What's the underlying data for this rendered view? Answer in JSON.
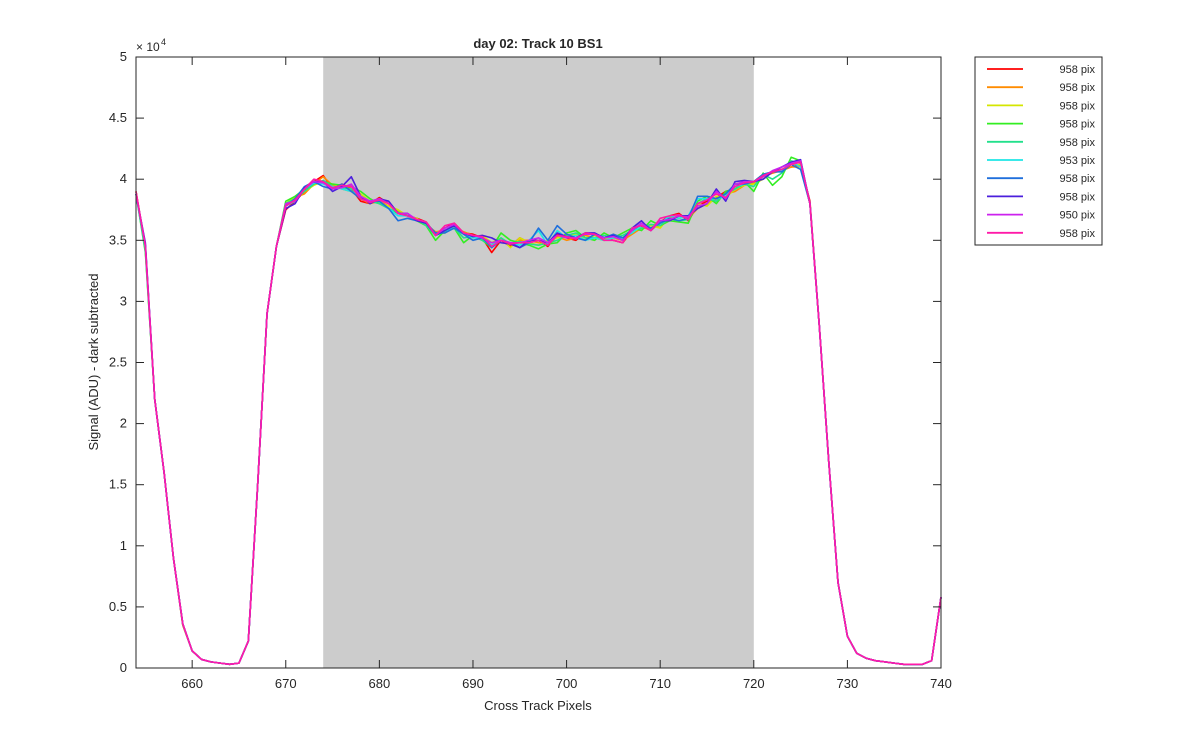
{
  "chart_data": {
    "type": "line",
    "title": "day 02: Track 10  BS1",
    "xlabel": "Cross Track Pixels",
    "ylabel": "Signal (ADU) - dark subtracted",
    "y_exponent_label": "× 10",
    "y_exponent_power": "4",
    "xlim": [
      654,
      740
    ],
    "ylim": [
      0,
      5
    ],
    "x_ticks": [
      660,
      670,
      680,
      690,
      700,
      710,
      720,
      730,
      740
    ],
    "y_ticks": [
      0,
      0.5,
      1,
      1.5,
      2,
      2.5,
      3,
      3.5,
      4,
      4.5,
      5
    ],
    "y_tick_labels": [
      "0",
      "0.5",
      "1",
      "1.5",
      "2",
      "2.5",
      "3",
      "3.5",
      "4",
      "4.5",
      "5"
    ],
    "shaded_region": {
      "x_start": 674,
      "x_end": 720,
      "color": "#cccccc"
    },
    "grid": false,
    "legend_position": "outside-top-right",
    "x": [
      654,
      655,
      656,
      657,
      658,
      659,
      660,
      661,
      662,
      663,
      664,
      665,
      666,
      667,
      668,
      669,
      670,
      671,
      672,
      673,
      674,
      675,
      676,
      677,
      678,
      679,
      680,
      681,
      682,
      683,
      684,
      685,
      686,
      687,
      688,
      689,
      690,
      691,
      692,
      693,
      694,
      695,
      696,
      697,
      698,
      699,
      700,
      701,
      702,
      703,
      704,
      705,
      706,
      707,
      708,
      709,
      710,
      711,
      712,
      713,
      714,
      715,
      716,
      717,
      718,
      719,
      720,
      721,
      722,
      723,
      724,
      725,
      726,
      727,
      728,
      729,
      730,
      731,
      732,
      733,
      734,
      735,
      736,
      737,
      738,
      739,
      740
    ],
    "series": [
      {
        "name": "958 pix",
        "color": "#ff0000",
        "values": [
          3.9,
          3.45,
          2.2,
          1.6,
          0.9,
          0.35,
          0.14,
          0.07,
          0.05,
          0.04,
          0.03,
          0.04,
          0.22,
          1.5,
          2.9,
          3.45,
          3.75,
          3.82,
          3.9,
          3.98,
          4.03,
          3.92,
          3.96,
          3.92,
          3.82,
          3.8,
          3.85,
          3.8,
          3.72,
          3.7,
          3.68,
          3.65,
          3.55,
          3.6,
          3.64,
          3.56,
          3.55,
          3.52,
          3.4,
          3.5,
          3.45,
          3.52,
          3.48,
          3.5,
          3.45,
          3.55,
          3.52,
          3.5,
          3.56,
          3.55,
          3.52,
          3.5,
          3.48,
          3.58,
          3.62,
          3.58,
          3.65,
          3.7,
          3.72,
          3.66,
          3.78,
          3.82,
          3.85,
          3.9,
          3.92,
          3.96,
          3.98,
          4.04,
          4.05,
          4.08,
          4.1,
          4.12,
          3.82,
          2.8,
          1.7,
          0.7,
          0.26,
          0.12,
          0.08,
          0.06,
          0.05,
          0.04,
          0.03,
          0.03,
          0.03,
          0.06,
          0.58
        ]
      },
      {
        "name": "958 pix",
        "color": "#ff8c00",
        "values": [
          3.9,
          3.42,
          2.2,
          1.6,
          0.9,
          0.36,
          0.14,
          0.07,
          0.05,
          0.04,
          0.03,
          0.04,
          0.22,
          1.5,
          2.9,
          3.45,
          3.78,
          3.85,
          3.88,
          3.96,
          4.02,
          3.95,
          3.92,
          3.9,
          3.84,
          3.8,
          3.82,
          3.78,
          3.74,
          3.7,
          3.66,
          3.63,
          3.57,
          3.58,
          3.6,
          3.57,
          3.54,
          3.5,
          3.46,
          3.5,
          3.47,
          3.5,
          3.5,
          3.48,
          3.47,
          3.53,
          3.5,
          3.52,
          3.54,
          3.52,
          3.5,
          3.52,
          3.5,
          3.55,
          3.6,
          3.6,
          3.62,
          3.68,
          3.7,
          3.68,
          3.76,
          3.8,
          3.84,
          3.88,
          3.9,
          3.95,
          3.97,
          4.02,
          4.05,
          4.07,
          4.1,
          4.1,
          3.8,
          2.8,
          1.7,
          0.7,
          0.26,
          0.12,
          0.08,
          0.06,
          0.05,
          0.04,
          0.03,
          0.03,
          0.03,
          0.06,
          0.58
        ]
      },
      {
        "name": "958 pix",
        "color": "#d4e600",
        "values": [
          3.88,
          3.45,
          2.2,
          1.6,
          0.9,
          0.35,
          0.14,
          0.07,
          0.05,
          0.04,
          0.03,
          0.04,
          0.22,
          1.5,
          2.9,
          3.45,
          3.8,
          3.86,
          3.9,
          3.95,
          3.98,
          3.96,
          3.94,
          3.92,
          3.88,
          3.82,
          3.8,
          3.78,
          3.75,
          3.7,
          3.68,
          3.62,
          3.55,
          3.56,
          3.62,
          3.55,
          3.52,
          3.54,
          3.48,
          3.52,
          3.44,
          3.52,
          3.48,
          3.46,
          3.5,
          3.52,
          3.54,
          3.55,
          3.5,
          3.54,
          3.5,
          3.55,
          3.52,
          3.57,
          3.6,
          3.62,
          3.6,
          3.7,
          3.68,
          3.7,
          3.8,
          3.78,
          3.86,
          3.85,
          3.92,
          3.95,
          3.96,
          4.0,
          4.06,
          4.08,
          4.12,
          4.12,
          3.8,
          2.8,
          1.7,
          0.7,
          0.26,
          0.12,
          0.08,
          0.06,
          0.05,
          0.04,
          0.03,
          0.03,
          0.03,
          0.06,
          0.58
        ]
      },
      {
        "name": "958 pix",
        "color": "#33ee22",
        "values": [
          3.88,
          3.4,
          2.2,
          1.6,
          0.9,
          0.36,
          0.14,
          0.07,
          0.05,
          0.04,
          0.03,
          0.04,
          0.22,
          1.5,
          2.9,
          3.45,
          3.82,
          3.86,
          3.92,
          3.98,
          3.98,
          3.96,
          3.95,
          3.94,
          3.9,
          3.84,
          3.8,
          3.76,
          3.72,
          3.72,
          3.66,
          3.62,
          3.5,
          3.58,
          3.6,
          3.48,
          3.54,
          3.5,
          3.44,
          3.56,
          3.5,
          3.48,
          3.46,
          3.43,
          3.47,
          3.48,
          3.56,
          3.58,
          3.52,
          3.5,
          3.56,
          3.52,
          3.56,
          3.6,
          3.58,
          3.66,
          3.62,
          3.66,
          3.65,
          3.64,
          3.82,
          3.86,
          3.8,
          3.9,
          3.92,
          3.98,
          3.9,
          4.05,
          3.95,
          4.02,
          4.18,
          4.15,
          3.8,
          2.8,
          1.7,
          0.7,
          0.26,
          0.12,
          0.08,
          0.06,
          0.05,
          0.04,
          0.03,
          0.03,
          0.03,
          0.06,
          0.58
        ]
      },
      {
        "name": "958 pix",
        "color": "#22e08c",
        "values": [
          3.88,
          3.42,
          2.2,
          1.6,
          0.9,
          0.36,
          0.14,
          0.07,
          0.05,
          0.04,
          0.03,
          0.04,
          0.22,
          1.5,
          2.9,
          3.45,
          3.8,
          3.84,
          3.9,
          3.96,
          3.99,
          3.94,
          3.93,
          3.92,
          3.86,
          3.82,
          3.8,
          3.76,
          3.73,
          3.7,
          3.67,
          3.62,
          3.54,
          3.57,
          3.6,
          3.52,
          3.53,
          3.5,
          3.46,
          3.52,
          3.47,
          3.49,
          3.47,
          3.46,
          3.48,
          3.5,
          3.54,
          3.56,
          3.52,
          3.52,
          3.54,
          3.52,
          3.54,
          3.58,
          3.6,
          3.63,
          3.62,
          3.68,
          3.66,
          3.67,
          3.8,
          3.84,
          3.82,
          3.88,
          3.92,
          3.96,
          3.94,
          4.04,
          4.0,
          4.05,
          4.15,
          4.13,
          3.8,
          2.8,
          1.7,
          0.7,
          0.26,
          0.12,
          0.08,
          0.06,
          0.05,
          0.04,
          0.03,
          0.03,
          0.03,
          0.06,
          0.58
        ]
      },
      {
        "name": "953 pix",
        "color": "#1ee6e6",
        "values": [
          3.88,
          3.44,
          2.2,
          1.6,
          0.9,
          0.36,
          0.14,
          0.07,
          0.05,
          0.04,
          0.03,
          0.04,
          0.22,
          1.5,
          2.9,
          3.45,
          3.78,
          3.82,
          3.92,
          3.97,
          3.96,
          3.94,
          3.92,
          3.9,
          3.86,
          3.82,
          3.82,
          3.76,
          3.7,
          3.7,
          3.66,
          3.64,
          3.56,
          3.58,
          3.6,
          3.56,
          3.52,
          3.52,
          3.46,
          3.5,
          3.48,
          3.46,
          3.5,
          3.58,
          3.46,
          3.58,
          3.52,
          3.54,
          3.5,
          3.52,
          3.5,
          3.52,
          3.52,
          3.56,
          3.62,
          3.6,
          3.64,
          3.7,
          3.68,
          3.7,
          3.84,
          3.84,
          3.84,
          3.86,
          3.94,
          3.96,
          3.98,
          4.04,
          4.06,
          4.07,
          4.14,
          4.1,
          3.8,
          2.8,
          1.7,
          0.7,
          0.26,
          0.12,
          0.08,
          0.06,
          0.05,
          0.04,
          0.03,
          0.03,
          0.03,
          0.06,
          0.58
        ]
      },
      {
        "name": "958 pix",
        "color": "#1f6fdc",
        "values": [
          3.88,
          3.46,
          2.2,
          1.6,
          0.9,
          0.36,
          0.14,
          0.07,
          0.05,
          0.04,
          0.03,
          0.04,
          0.22,
          1.5,
          2.9,
          3.45,
          3.78,
          3.84,
          3.94,
          3.98,
          3.94,
          3.92,
          3.96,
          3.9,
          3.84,
          3.82,
          3.82,
          3.76,
          3.66,
          3.68,
          3.66,
          3.64,
          3.56,
          3.56,
          3.6,
          3.55,
          3.5,
          3.52,
          3.44,
          3.5,
          3.48,
          3.44,
          3.48,
          3.6,
          3.5,
          3.62,
          3.55,
          3.52,
          3.5,
          3.55,
          3.52,
          3.55,
          3.52,
          3.58,
          3.64,
          3.6,
          3.64,
          3.68,
          3.66,
          3.68,
          3.86,
          3.86,
          3.84,
          3.88,
          3.96,
          3.96,
          3.98,
          4.04,
          4.06,
          4.06,
          4.12,
          4.08,
          3.8,
          2.8,
          1.7,
          0.7,
          0.26,
          0.12,
          0.08,
          0.06,
          0.05,
          0.04,
          0.03,
          0.03,
          0.03,
          0.06,
          0.58
        ]
      },
      {
        "name": "958 pix",
        "color": "#4b1fdc",
        "values": [
          3.88,
          3.48,
          2.2,
          1.6,
          0.9,
          0.36,
          0.14,
          0.07,
          0.05,
          0.04,
          0.03,
          0.04,
          0.22,
          1.5,
          2.9,
          3.45,
          3.76,
          3.8,
          3.93,
          3.98,
          3.98,
          3.9,
          3.94,
          4.02,
          3.86,
          3.8,
          3.84,
          3.82,
          3.72,
          3.72,
          3.66,
          3.64,
          3.54,
          3.58,
          3.62,
          3.56,
          3.53,
          3.54,
          3.52,
          3.48,
          3.47,
          3.44,
          3.5,
          3.5,
          3.48,
          3.56,
          3.53,
          3.52,
          3.56,
          3.56,
          3.52,
          3.54,
          3.5,
          3.6,
          3.66,
          3.58,
          3.66,
          3.66,
          3.7,
          3.7,
          3.76,
          3.8,
          3.92,
          3.82,
          3.98,
          3.99,
          3.98,
          4.0,
          4.06,
          4.1,
          4.14,
          4.16,
          3.8,
          2.8,
          1.7,
          0.7,
          0.26,
          0.12,
          0.08,
          0.06,
          0.05,
          0.04,
          0.03,
          0.03,
          0.03,
          0.06,
          0.58
        ]
      },
      {
        "name": "950 pix",
        "color": "#cc22ee",
        "values": [
          3.88,
          3.46,
          2.2,
          1.6,
          0.9,
          0.36,
          0.14,
          0.07,
          0.05,
          0.04,
          0.03,
          0.04,
          0.22,
          1.5,
          2.9,
          3.45,
          3.8,
          3.82,
          3.92,
          3.98,
          3.97,
          3.92,
          3.93,
          3.96,
          3.86,
          3.82,
          3.84,
          3.8,
          3.72,
          3.72,
          3.67,
          3.65,
          3.54,
          3.6,
          3.63,
          3.56,
          3.54,
          3.52,
          3.48,
          3.5,
          3.48,
          3.48,
          3.5,
          3.52,
          3.48,
          3.54,
          3.52,
          3.52,
          3.55,
          3.55,
          3.52,
          3.53,
          3.5,
          3.58,
          3.64,
          3.58,
          3.66,
          3.67,
          3.7,
          3.69,
          3.78,
          3.8,
          3.9,
          3.84,
          3.96,
          3.98,
          3.98,
          4.02,
          4.07,
          4.1,
          4.13,
          4.15,
          3.8,
          2.8,
          1.7,
          0.7,
          0.26,
          0.12,
          0.08,
          0.06,
          0.05,
          0.04,
          0.03,
          0.03,
          0.03,
          0.06,
          0.58
        ]
      },
      {
        "name": "958 pix",
        "color": "#ff1aa8",
        "values": [
          3.9,
          3.45,
          2.2,
          1.6,
          0.9,
          0.36,
          0.14,
          0.07,
          0.05,
          0.04,
          0.03,
          0.04,
          0.22,
          1.5,
          2.9,
          3.45,
          3.78,
          3.83,
          3.92,
          4.0,
          3.98,
          3.93,
          3.95,
          3.94,
          3.84,
          3.81,
          3.83,
          3.8,
          3.72,
          3.7,
          3.67,
          3.65,
          3.54,
          3.62,
          3.64,
          3.56,
          3.54,
          3.53,
          3.45,
          3.5,
          3.47,
          3.48,
          3.48,
          3.5,
          3.46,
          3.54,
          3.53,
          3.51,
          3.56,
          3.55,
          3.5,
          3.5,
          3.48,
          3.6,
          3.62,
          3.58,
          3.68,
          3.7,
          3.71,
          3.67,
          3.8,
          3.83,
          3.88,
          3.85,
          3.94,
          3.97,
          3.98,
          4.03,
          4.06,
          4.08,
          4.12,
          4.14,
          3.8,
          2.8,
          1.7,
          0.7,
          0.26,
          0.12,
          0.08,
          0.06,
          0.05,
          0.04,
          0.03,
          0.03,
          0.03,
          0.06,
          0.58
        ]
      }
    ]
  }
}
